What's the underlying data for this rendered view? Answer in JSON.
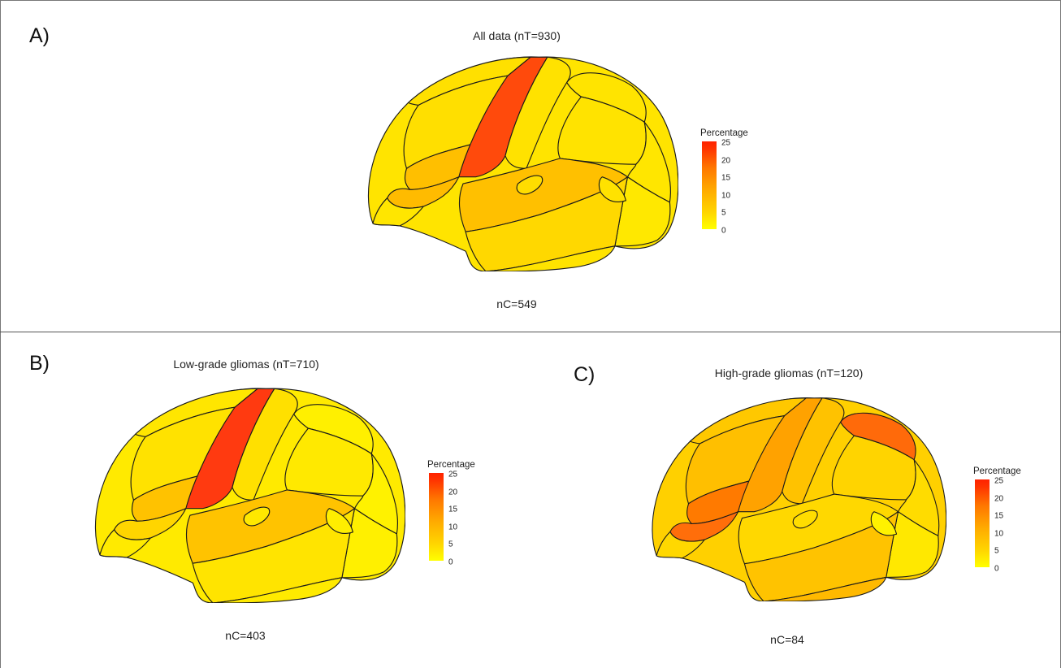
{
  "panels": [
    {
      "letter": "A)",
      "title": "All data (nT=930)",
      "count": "nC=549",
      "colors": {
        "base": "#ffe400",
        "frontal_sup": "#ffe000",
        "frontal_mid": "#ffdf00",
        "frontal_inf": "#ffbf00",
        "orbito": "#ffbb00",
        "pars_orb": "#ffe600",
        "precentral": "#ff4a0c",
        "postcentral": "#ffe200",
        "sup_parietal": "#ffe400",
        "supramarginal": "#ffe300",
        "inf_parietal": "#ffe600",
        "occipital": "#ffe800",
        "temporal_sup": "#ffc000",
        "temporal_mid": "#ffd800",
        "temporal_inf": "#ffe300",
        "insula": "#ffdd00",
        "pole": "#ffe200"
      }
    },
    {
      "letter": "B)",
      "title": "Low-grade gliomas (nT=710)",
      "count": "nC=403",
      "colors": {
        "base": "#ffea00",
        "frontal_sup": "#ffe600",
        "frontal_mid": "#ffe200",
        "frontal_inf": "#ffc200",
        "orbito": "#ffd500",
        "pars_orb": "#ffea00",
        "precentral": "#ff3a10",
        "postcentral": "#ffe000",
        "sup_parietal": "#fff000",
        "supramarginal": "#ffe900",
        "inf_parietal": "#fff200",
        "occipital": "#fff000",
        "temporal_sup": "#ffc300",
        "temporal_mid": "#ffe400",
        "temporal_inf": "#ffea00",
        "insula": "#ffe800",
        "pole": "#ffee00"
      }
    },
    {
      "letter": "C)",
      "title": "High-grade gliomas (nT=120)",
      "count": "nC=84",
      "colors": {
        "base": "#ffd000",
        "frontal_sup": "#ffc800",
        "frontal_mid": "#ffbf00",
        "frontal_inf": "#ff7a00",
        "orbito": "#ff6e0a",
        "pars_orb": "#ffd800",
        "precentral": "#ffa200",
        "postcentral": "#ffc200",
        "sup_parietal": "#ff6a0a",
        "supramarginal": "#ffd400",
        "inf_parietal": "#ffdc00",
        "occipital": "#ffe800",
        "temporal_sup": "#ffd800",
        "temporal_mid": "#ffc300",
        "temporal_inf": "#ffb900",
        "insula": "#ffdd00",
        "pole": "#fff200"
      }
    }
  ],
  "legend": {
    "title": "Percentage",
    "ticks": [
      "25",
      "20",
      "15",
      "10",
      "5",
      "0"
    ],
    "range": [
      0,
      25
    ],
    "colors": [
      "#ffff00",
      "#ffaa00",
      "#ff2200"
    ]
  }
}
